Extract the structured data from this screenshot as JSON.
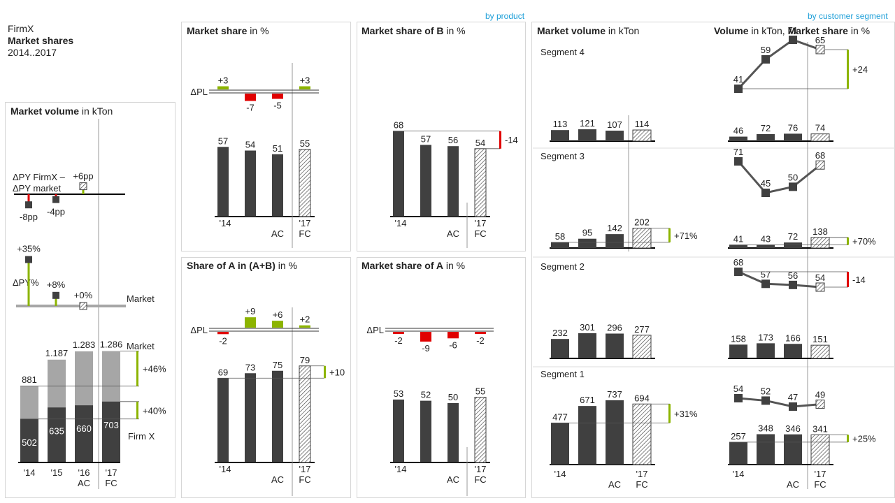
{
  "header": {
    "company": "FirmX",
    "title": "Market shares",
    "period": "2014..2017"
  },
  "links": {
    "by_product": "by product",
    "by_segment": "by customer segment"
  },
  "colors": {
    "ac": "#404040",
    "pos": "#8cb400",
    "neg": "#e00000",
    "light": "#a6a6a6",
    "line": "#888888"
  },
  "panels": {
    "left": {
      "bold": "Market volume",
      "rest": " in kTon"
    },
    "ms": {
      "bold": "Market share",
      "rest": " in %"
    },
    "msb": {
      "bold": "Market share of B",
      "rest": " in %"
    },
    "sha": {
      "bold": "Share of A in (A+B)",
      "rest": " in %"
    },
    "msa": {
      "bold": "Market share of A",
      "rest": " in %"
    },
    "seg_volume": {
      "bold": "Market volume",
      "rest": " in kTon"
    },
    "seg_share": {
      "bold1": "Volume",
      "rest1": " in kTon, ",
      "bold2": "Market share",
      "rest2": " in %"
    }
  },
  "labels": {
    "dpl": "ΔPL",
    "dpy_firmx": "ΔPY FirmX –",
    "dpy_market": "ΔPY market",
    "dpy_pct": "ΔPY%",
    "market": "Market",
    "firmx": "Firm X",
    "ac": "AC",
    "fc": "FC"
  },
  "chart_data": [
    {
      "type": "bar",
      "title": "Market volume in kTon",
      "categories": [
        "'14",
        "'15",
        "'16",
        "'17"
      ],
      "scenarios": [
        "AC",
        "AC",
        "AC",
        "FC"
      ],
      "series": [
        {
          "name": "Firm X",
          "values": [
            502,
            635,
            660,
            703
          ]
        },
        {
          "name": "Market",
          "values": [
            881,
            1187,
            1283,
            1286
          ],
          "labels": [
            "881",
            "1.187",
            "1.283",
            "1.286"
          ]
        }
      ],
      "delta_py_firmx_minus_market": {
        "labels": [
          "-8pp",
          "-4pp",
          "+6pp"
        ]
      },
      "delta_py_pct_market": {
        "labels": [
          "+35%",
          "+8%",
          "+0%"
        ]
      },
      "variance_labels": [
        "+46%",
        "+40%"
      ]
    },
    {
      "type": "bar",
      "title": "Market share in %",
      "categories": [
        "'14",
        "'15",
        "'16",
        "'17"
      ],
      "scenarios": [
        "AC",
        "AC",
        "AC",
        "FC"
      ],
      "values": [
        57,
        54,
        51,
        55
      ],
      "delta_pl": [
        3,
        -7,
        -5,
        3
      ]
    },
    {
      "type": "bar",
      "title": "Market share of B in %",
      "categories": [
        "'14",
        "'15",
        "'16",
        "'17"
      ],
      "scenarios": [
        "AC",
        "AC",
        "AC",
        "FC"
      ],
      "values": [
        68,
        57,
        56,
        54
      ],
      "variance_label": "-14"
    },
    {
      "type": "bar",
      "title": "Share of A in (A+B) in %",
      "categories": [
        "'14",
        "'15",
        "'16",
        "'17"
      ],
      "scenarios": [
        "AC",
        "AC",
        "AC",
        "FC"
      ],
      "values": [
        69,
        73,
        75,
        79
      ],
      "delta_pl": [
        -2,
        9,
        6,
        2
      ],
      "variance_label": "+10"
    },
    {
      "type": "bar",
      "title": "Market share of A in %",
      "categories": [
        "'14",
        "'15",
        "'16",
        "'17"
      ],
      "scenarios": [
        "AC",
        "AC",
        "AC",
        "FC"
      ],
      "values": [
        53,
        52,
        50,
        55
      ],
      "delta_pl": [
        -2,
        -9,
        -6,
        -2
      ]
    },
    {
      "type": "bar",
      "title": "Market volume in kTon",
      "categories": [
        "'14",
        "'15",
        "'16",
        "'17"
      ],
      "scenarios": [
        "AC",
        "AC",
        "AC",
        "FC"
      ],
      "segments": [
        {
          "name": "Segment 4",
          "values": [
            113,
            121,
            107,
            114
          ],
          "variance_label": ""
        },
        {
          "name": "Segment 3",
          "values": [
            58,
            95,
            142,
            202
          ],
          "variance_label": "+71%"
        },
        {
          "name": "Segment 2",
          "values": [
            232,
            301,
            296,
            277
          ],
          "variance_label": ""
        },
        {
          "name": "Segment 1",
          "values": [
            477,
            671,
            737,
            694
          ],
          "variance_label": "+31%"
        }
      ]
    },
    {
      "type": "line",
      "title": "Volume in kTon, Market share in %",
      "categories": [
        "'14",
        "'15",
        "'16",
        "'17"
      ],
      "scenarios": [
        "AC",
        "AC",
        "AC",
        "FC"
      ],
      "segments": [
        {
          "name": "Segment 4",
          "share": [
            41,
            59,
            71,
            65
          ],
          "share_variance": "+24",
          "volume": [
            46,
            72,
            76,
            74
          ],
          "volume_variance": ""
        },
        {
          "name": "Segment 3",
          "share": [
            71,
            45,
            50,
            68
          ],
          "share_variance": "",
          "volume": [
            41,
            43,
            72,
            138
          ],
          "volume_variance": "+70%"
        },
        {
          "name": "Segment 2",
          "share": [
            68,
            57,
            56,
            54
          ],
          "share_variance": "-14",
          "volume": [
            158,
            173,
            166,
            151
          ],
          "volume_variance": ""
        },
        {
          "name": "Segment 1",
          "share": [
            54,
            52,
            47,
            49
          ],
          "share_variance": "",
          "volume": [
            257,
            348,
            346,
            341
          ],
          "volume_variance": "+25%"
        }
      ]
    }
  ]
}
